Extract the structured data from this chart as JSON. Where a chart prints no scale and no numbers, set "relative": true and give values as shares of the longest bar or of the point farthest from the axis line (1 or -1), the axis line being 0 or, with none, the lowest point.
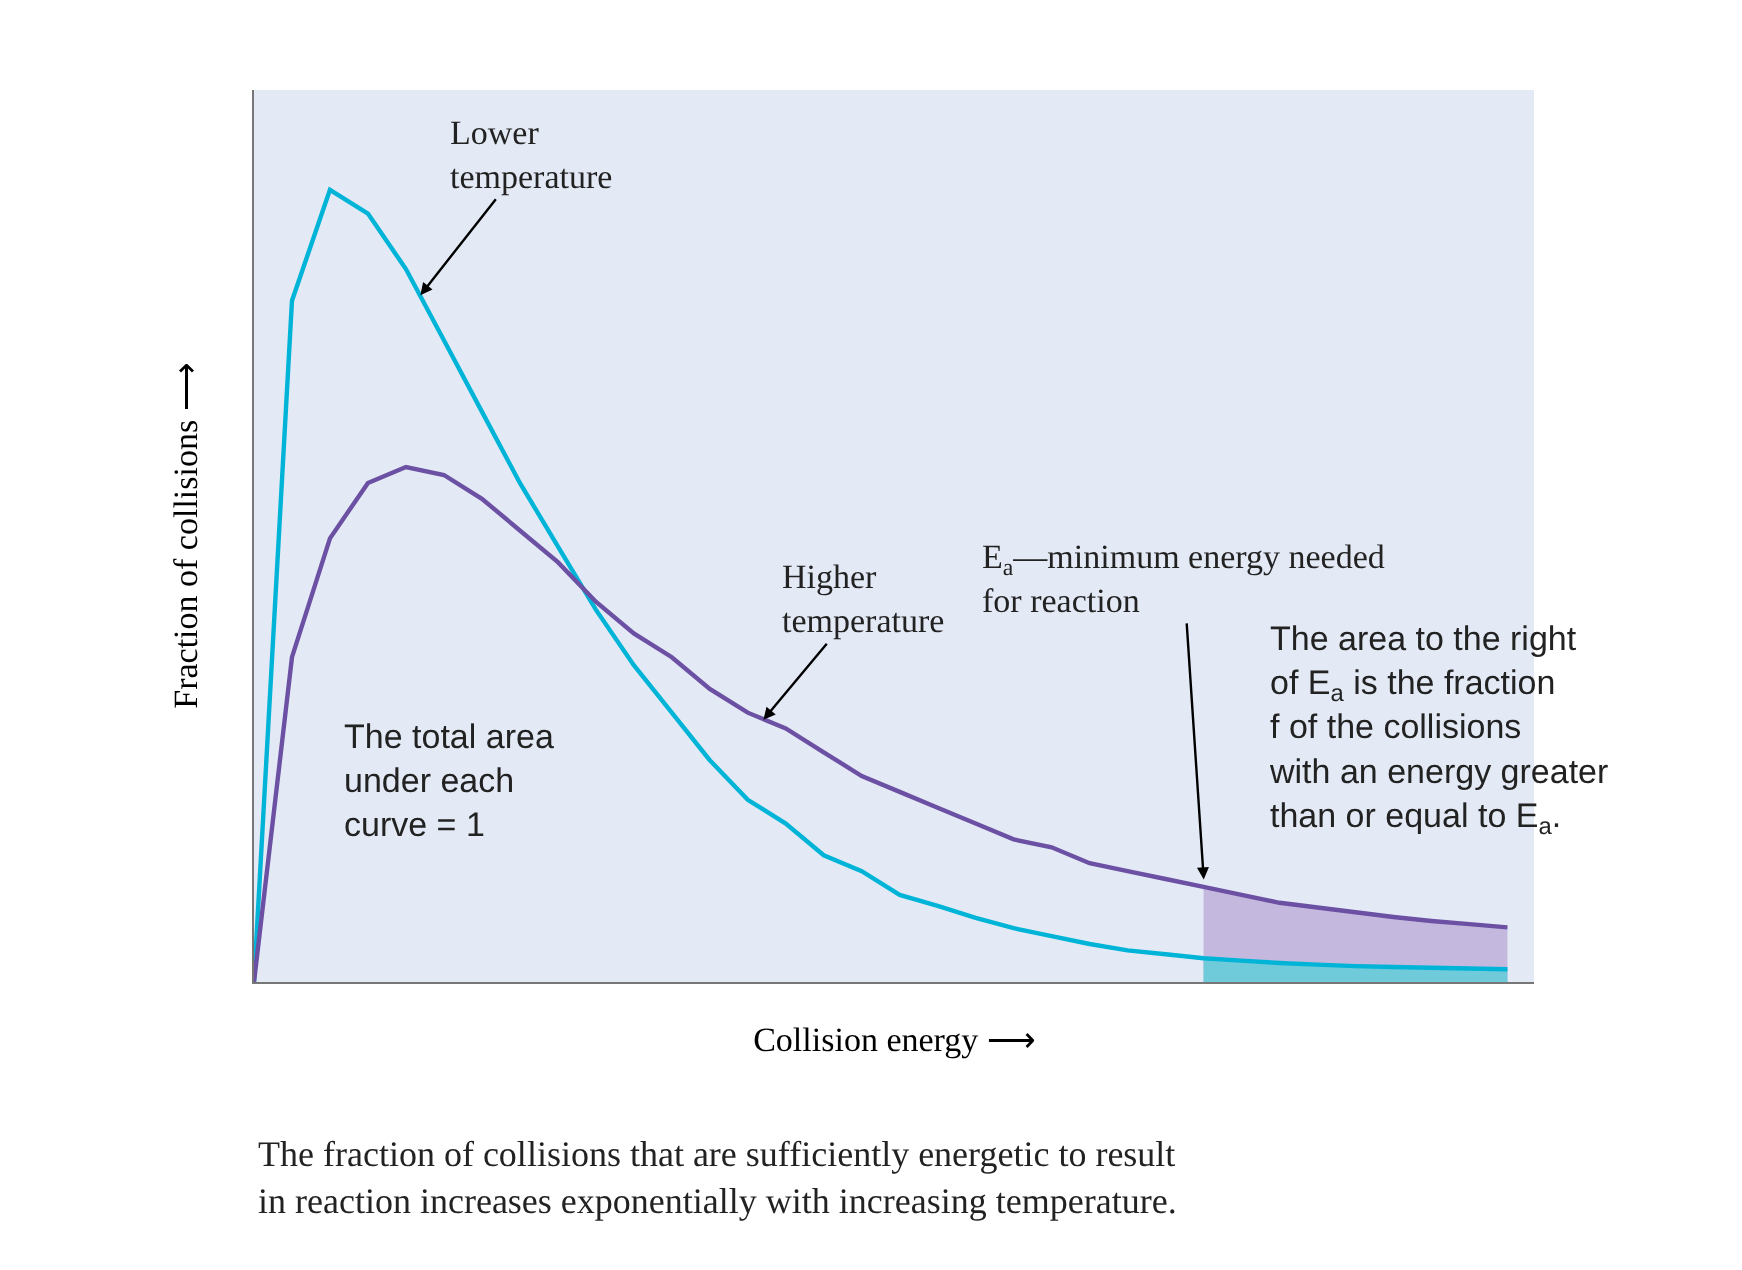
{
  "chart_data": {
    "type": "line",
    "relative": true,
    "xlabel": "Collision energy ⟶",
    "ylabel": "Fraction of collisions ⟶",
    "categories": [
      null,
      null,
      null,
      null,
      null,
      null,
      null,
      null,
      null,
      null,
      null,
      null,
      null,
      null,
      null,
      null,
      null,
      null,
      null,
      null,
      null,
      null,
      null,
      null,
      null,
      null,
      null,
      null,
      null,
      null,
      null,
      null,
      null,
      null
    ],
    "series": [
      {
        "type": "area",
        "color": "#c5b8de",
        "values": [
          null,
          null,
          null,
          null,
          null,
          null,
          null,
          null,
          null,
          null,
          null,
          null,
          null,
          null,
          null,
          null,
          null,
          null,
          null,
          null,
          null,
          null,
          null,
          null,
          null,
          0.12,
          0.11,
          0.1,
          0.094,
          0.088,
          0.082,
          0.077,
          0.073,
          0.069
        ]
      },
      {
        "type": "area",
        "color": "#6fcad9",
        "values": [
          null,
          null,
          null,
          null,
          null,
          null,
          null,
          null,
          null,
          null,
          null,
          null,
          null,
          null,
          null,
          null,
          null,
          null,
          null,
          null,
          null,
          null,
          null,
          null,
          null,
          0.03,
          0.027,
          0.024,
          0.022,
          0.02,
          0.019,
          0.018,
          0.017,
          0.016
        ]
      },
      {
        "color": "#00b4d8",
        "values": [
          0,
          0.86,
          1.0,
          0.97,
          0.9,
          0.81,
          0.72,
          0.63,
          0.55,
          0.47,
          0.4,
          0.34,
          0.28,
          0.23,
          0.2,
          0.16,
          0.14,
          0.11,
          0.096,
          0.081,
          0.068,
          0.058,
          0.048,
          0.04,
          0.035,
          0.03,
          0.027,
          0.024,
          0.022,
          0.02,
          0.019,
          0.018,
          0.017,
          0.016
        ]
      },
      {
        "color": "#6b50a3",
        "values": [
          0,
          0.41,
          0.56,
          0.63,
          0.65,
          0.64,
          0.61,
          0.57,
          0.53,
          0.48,
          0.44,
          0.41,
          0.37,
          0.34,
          0.32,
          0.29,
          0.26,
          0.24,
          0.22,
          0.2,
          0.18,
          0.17,
          0.15,
          0.14,
          0.13,
          0.12,
          0.11,
          0.1,
          0.094,
          0.088,
          0.082,
          0.077,
          0.073,
          0.069
        ]
      }
    ],
    "annotations": [
      "E$_{a}$—minimum energy needed for reaction",
      "Lower temperature",
      "Higher temperature",
      "The total area under each curve = 1",
      "The area to the right of E$_{a}$ is the fraction f of the collisions with an energy greater than or equal to E$_{a}$.",
      "The fraction of collisions that are sufficiently energetic to result in reaction increases exponentially with increasing temperature."
    ],
    "tick_labels": false,
    "grid": false,
    "marker": "none",
    "line_style": "solid"
  }
}
